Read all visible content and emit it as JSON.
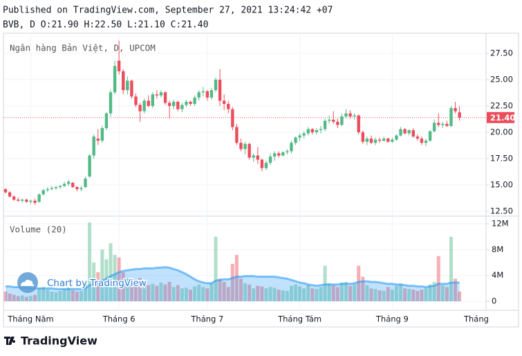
{
  "header": {
    "published": "Published on TradingView.com, September 27, 2021 13:24:42 +07",
    "symbol_line": "BVB, D O:21.90 H:22.50 L:21.10 C:21.40"
  },
  "footer": {
    "brand": "TradingView"
  },
  "watermark": "Chart by TradingView",
  "chart_data": {
    "type": "candlestick",
    "title": "Ngân hàng Bản Việt, D, UPCOM",
    "up_color": "#53b987",
    "down_color": "#eb4d5c",
    "categories": [
      null,
      null,
      null,
      null,
      null,
      null,
      "Tháng Năm",
      null,
      null,
      null,
      null,
      null,
      null,
      null,
      null,
      null,
      null,
      null,
      null,
      null,
      null,
      null,
      null,
      null,
      null,
      null,
      null,
      "Tháng 6",
      null,
      null,
      null,
      null,
      null,
      null,
      null,
      null,
      null,
      null,
      null,
      null,
      null,
      null,
      null,
      null,
      null,
      null,
      null,
      null,
      "Tháng 7",
      null,
      null,
      null,
      null,
      null,
      null,
      null,
      null,
      null,
      null,
      null,
      null,
      null,
      null,
      null,
      null,
      null,
      null,
      null,
      null,
      null,
      "Tháng Tám",
      null,
      null,
      null,
      null,
      null,
      null,
      null,
      null,
      null,
      null,
      null,
      null,
      null,
      null,
      null,
      null,
      null,
      null,
      null,
      null,
      null,
      "Tháng 9",
      null,
      null,
      null,
      null,
      null,
      null,
      null,
      null,
      null,
      null,
      null,
      null,
      null,
      null,
      null,
      null
    ],
    "next_category_label": "Tháng",
    "ohlc": [
      [
        14.6,
        14.7,
        14.2,
        14.3
      ],
      [
        14.3,
        14.4,
        13.8,
        13.9
      ],
      [
        13.9,
        14.0,
        13.5,
        13.6
      ],
      [
        13.6,
        13.8,
        13.4,
        13.5
      ],
      [
        13.5,
        13.7,
        13.3,
        13.6
      ],
      [
        13.6,
        13.7,
        13.3,
        13.4
      ],
      [
        13.4,
        13.6,
        13.2,
        13.5
      ],
      [
        13.5,
        13.7,
        13.1,
        13.3
      ],
      [
        13.4,
        14.2,
        13.3,
        14.1
      ],
      [
        14.1,
        14.6,
        14.0,
        14.5
      ],
      [
        14.5,
        14.8,
        14.3,
        14.6
      ],
      [
        14.6,
        14.9,
        14.5,
        14.7
      ],
      [
        14.7,
        14.9,
        14.5,
        14.8
      ],
      [
        14.8,
        15.0,
        14.6,
        14.9
      ],
      [
        14.9,
        15.3,
        14.8,
        15.1
      ],
      [
        15.1,
        15.5,
        14.9,
        15.3
      ],
      [
        15.2,
        15.3,
        14.7,
        14.8
      ],
      [
        14.8,
        14.9,
        14.4,
        14.6
      ],
      [
        14.6,
        14.9,
        14.4,
        14.7
      ],
      [
        14.8,
        15.8,
        14.7,
        15.6
      ],
      [
        15.8,
        17.9,
        15.7,
        17.8
      ],
      [
        17.8,
        19.8,
        17.5,
        19.6
      ],
      [
        19.4,
        20.3,
        18.8,
        19.2
      ],
      [
        19.2,
        20.6,
        19.0,
        20.4
      ],
      [
        20.4,
        21.9,
        20.2,
        21.8
      ],
      [
        21.8,
        24.0,
        21.5,
        23.8
      ],
      [
        23.8,
        26.8,
        23.6,
        26.3
      ],
      [
        26.8,
        28.7,
        25.5,
        25.8
      ],
      [
        25.8,
        26.0,
        23.6,
        24.0
      ],
      [
        24.0,
        25.3,
        23.6,
        24.9
      ],
      [
        24.9,
        25.0,
        23.2,
        23.4
      ],
      [
        23.4,
        23.7,
        22.4,
        22.6
      ],
      [
        22.6,
        22.8,
        21.0,
        22.0
      ],
      [
        22.0,
        23.2,
        21.8,
        23.0
      ],
      [
        23.0,
        23.5,
        22.4,
        22.5
      ],
      [
        22.5,
        23.8,
        22.3,
        23.6
      ],
      [
        23.6,
        24.0,
        23.2,
        23.5
      ],
      [
        23.5,
        24.0,
        23.3,
        23.8
      ],
      [
        23.8,
        23.9,
        22.6,
        22.8
      ],
      [
        22.8,
        23.0,
        21.3,
        22.5
      ],
      [
        22.5,
        23.1,
        22.2,
        22.9
      ],
      [
        22.9,
        23.0,
        22.0,
        22.2
      ],
      [
        22.2,
        22.8,
        21.9,
        22.6
      ],
      [
        22.6,
        23.1,
        22.4,
        22.9
      ],
      [
        22.9,
        23.0,
        22.5,
        22.7
      ],
      [
        22.7,
        23.5,
        22.5,
        23.3
      ],
      [
        23.3,
        24.0,
        23.0,
        23.8
      ],
      [
        23.8,
        24.3,
        23.4,
        23.9
      ],
      [
        23.9,
        24.0,
        23.0,
        23.3
      ],
      [
        23.3,
        24.2,
        23.1,
        24.0
      ],
      [
        24.0,
        25.2,
        23.8,
        25.0
      ],
      [
        25.0,
        26.0,
        22.5,
        23.0
      ],
      [
        23.0,
        23.6,
        22.1,
        22.7
      ],
      [
        22.7,
        23.0,
        21.8,
        22.2
      ],
      [
        22.2,
        22.4,
        20.2,
        20.5
      ],
      [
        20.5,
        20.8,
        18.8,
        19.0
      ],
      [
        19.0,
        19.4,
        18.2,
        18.4
      ],
      [
        18.4,
        19.1,
        17.9,
        18.9
      ],
      [
        18.9,
        19.0,
        17.4,
        17.6
      ],
      [
        17.6,
        18.0,
        17.2,
        17.8
      ],
      [
        17.8,
        18.6,
        17.0,
        17.4
      ],
      [
        17.4,
        17.5,
        16.3,
        16.6
      ],
      [
        16.6,
        17.3,
        16.4,
        17.1
      ],
      [
        17.1,
        18.0,
        16.9,
        17.7
      ],
      [
        17.7,
        18.2,
        17.3,
        18.0
      ],
      [
        18.0,
        18.2,
        17.6,
        17.8
      ],
      [
        17.8,
        18.2,
        17.7,
        18.1
      ],
      [
        18.1,
        18.4,
        17.9,
        18.2
      ],
      [
        18.2,
        19.2,
        18.0,
        19.0
      ],
      [
        19.0,
        19.6,
        18.8,
        19.5
      ],
      [
        19.5,
        19.9,
        19.2,
        19.7
      ],
      [
        19.7,
        20.1,
        19.4,
        19.9
      ],
      [
        19.9,
        20.5,
        19.7,
        20.3
      ],
      [
        20.3,
        20.4,
        19.8,
        20.0
      ],
      [
        20.0,
        20.4,
        19.8,
        20.2
      ],
      [
        20.2,
        20.6,
        19.9,
        20.3
      ],
      [
        20.3,
        21.3,
        20.1,
        21.1
      ],
      [
        21.1,
        21.6,
        20.8,
        21.2
      ],
      [
        21.2,
        22.0,
        20.8,
        21.0
      ],
      [
        21.0,
        21.3,
        20.4,
        20.7
      ],
      [
        20.7,
        21.8,
        20.6,
        21.5
      ],
      [
        21.5,
        22.2,
        21.3,
        21.8
      ],
      [
        21.8,
        22.1,
        21.3,
        21.5
      ],
      [
        21.5,
        21.8,
        21.2,
        21.6
      ],
      [
        21.6,
        21.7,
        19.8,
        20.0
      ],
      [
        20.0,
        20.2,
        18.9,
        19.1
      ],
      [
        19.1,
        19.6,
        18.8,
        19.4
      ],
      [
        19.4,
        19.7,
        18.9,
        19.0
      ],
      [
        19.0,
        19.5,
        18.8,
        19.3
      ],
      [
        19.3,
        19.5,
        19.0,
        19.2
      ],
      [
        19.2,
        19.6,
        19.1,
        19.4
      ],
      [
        19.4,
        19.5,
        19.0,
        19.1
      ],
      [
        19.1,
        19.5,
        19.0,
        19.3
      ],
      [
        19.3,
        19.8,
        19.2,
        19.7
      ],
      [
        19.7,
        20.5,
        19.6,
        20.3
      ],
      [
        20.3,
        20.4,
        19.8,
        19.9
      ],
      [
        19.9,
        20.3,
        19.7,
        20.2
      ],
      [
        20.2,
        20.4,
        19.5,
        19.6
      ],
      [
        19.6,
        19.8,
        19.2,
        19.4
      ],
      [
        19.4,
        19.6,
        18.8,
        19.0
      ],
      [
        19.0,
        19.4,
        18.7,
        19.2
      ],
      [
        19.2,
        20.2,
        19.1,
        20.1
      ],
      [
        20.1,
        21.2,
        20.0,
        20.9
      ],
      [
        20.9,
        21.8,
        20.5,
        20.7
      ],
      [
        20.7,
        21.0,
        20.4,
        20.8
      ],
      [
        20.8,
        21.1,
        20.5,
        20.6
      ],
      [
        20.6,
        22.5,
        20.5,
        22.3
      ],
      [
        22.3,
        22.9,
        21.8,
        22.0
      ],
      [
        21.9,
        22.5,
        21.1,
        21.4
      ]
    ],
    "last_price_label": "21.40",
    "last_price_color": "#eb4d5c",
    "ylim": [
      12.04,
      29.41
    ],
    "yticks": [
      {
        "value": 12.5,
        "label": "12.50"
      },
      {
        "value": 15,
        "label": "15.00"
      },
      {
        "value": 17.5,
        "label": "17.50"
      },
      {
        "value": 20,
        "label": "20.00"
      },
      {
        "value": 22.5,
        "label": "22.50"
      },
      {
        "value": 25,
        "label": "25.00"
      },
      {
        "value": 27.5,
        "label": "27.50"
      }
    ],
    "grid": true,
    "volume": {
      "title": "Volume (20)",
      "up_color": "rgba(83,185,135,0.45)",
      "down_color": "rgba(235,77,92,0.45)",
      "ma_color": "#2196f3",
      "values": [
        1.5,
        1.2,
        1.0,
        0.8,
        0.9,
        0.7,
        0.8,
        1.0,
        2.0,
        2.2,
        1.8,
        1.5,
        1.4,
        1.6,
        1.9,
        2.1,
        1.7,
        1.5,
        1.6,
        3.0,
        12.2,
        6.0,
        4.5,
        8.0,
        6.5,
        9.0,
        7.2,
        6.8,
        4.5,
        3.5,
        3.2,
        3.0,
        3.6,
        2.8,
        2.5,
        2.7,
        2.4,
        2.9,
        2.6,
        3.0,
        2.2,
        2.5,
        2.0,
        2.1,
        1.8,
        2.3,
        2.6,
        2.2,
        2.0,
        2.8,
        10.0,
        3.5,
        3.0,
        2.2,
        5.8,
        7.2,
        3.5,
        2.8,
        2.6,
        2.0,
        2.4,
        2.3,
        2.0,
        2.2,
        2.1,
        1.8,
        1.7,
        1.6,
        2.4,
        2.6,
        2.3,
        2.0,
        2.5,
        2.0,
        1.9,
        2.2,
        5.5,
        2.8,
        2.5,
        2.2,
        2.9,
        3.0,
        2.4,
        2.6,
        5.5,
        3.8,
        2.5,
        2.0,
        1.9,
        1.7,
        1.6,
        2.2,
        1.8,
        2.4,
        2.7,
        2.0,
        1.9,
        1.8,
        1.6,
        1.8,
        2.0,
        2.6,
        3.0,
        7.0,
        2.5,
        2.2,
        10.0,
        3.5,
        1.5
      ],
      "ma": [
        2.3,
        2.3,
        2.2,
        2.2,
        2.1,
        2.1,
        2.0,
        2.0,
        2.0,
        2.0,
        2.0,
        2.0,
        1.9,
        1.9,
        1.9,
        1.9,
        1.9,
        1.9,
        1.9,
        2.0,
        2.5,
        2.7,
        2.9,
        3.2,
        3.5,
        3.9,
        4.2,
        4.5,
        4.7,
        4.8,
        4.9,
        5.0,
        5.0,
        5.1,
        5.1,
        5.1,
        5.2,
        5.2,
        5.3,
        5.2,
        5.0,
        4.8,
        4.5,
        4.2,
        3.8,
        3.4,
        3.1,
        2.9,
        2.8,
        2.8,
        3.2,
        3.3,
        3.4,
        3.4,
        3.6,
        3.8,
        3.8,
        3.9,
        3.9,
        3.9,
        3.8,
        3.8,
        3.8,
        3.8,
        3.8,
        3.7,
        3.6,
        3.5,
        3.3,
        3.1,
        2.9,
        2.8,
        2.6,
        2.5,
        2.4,
        2.5,
        2.6,
        2.6,
        2.6,
        2.6,
        2.7,
        2.7,
        2.7,
        2.8,
        3.0,
        3.1,
        3.1,
        3.0,
        3.0,
        2.9,
        2.8,
        2.7,
        2.7,
        2.6,
        2.6,
        2.5,
        2.4,
        2.4,
        2.3,
        2.3,
        2.2,
        2.3,
        2.4,
        2.7,
        2.7,
        2.7,
        2.9,
        2.9,
        2.9
      ],
      "ylim": [
        -1.4,
        13.2
      ],
      "yticks": [
        0,
        {
          "value": 4,
          "label": "4M"
        },
        {
          "value": 8,
          "label": "8M"
        },
        {
          "value": 12,
          "label": "12M"
        }
      ]
    }
  }
}
